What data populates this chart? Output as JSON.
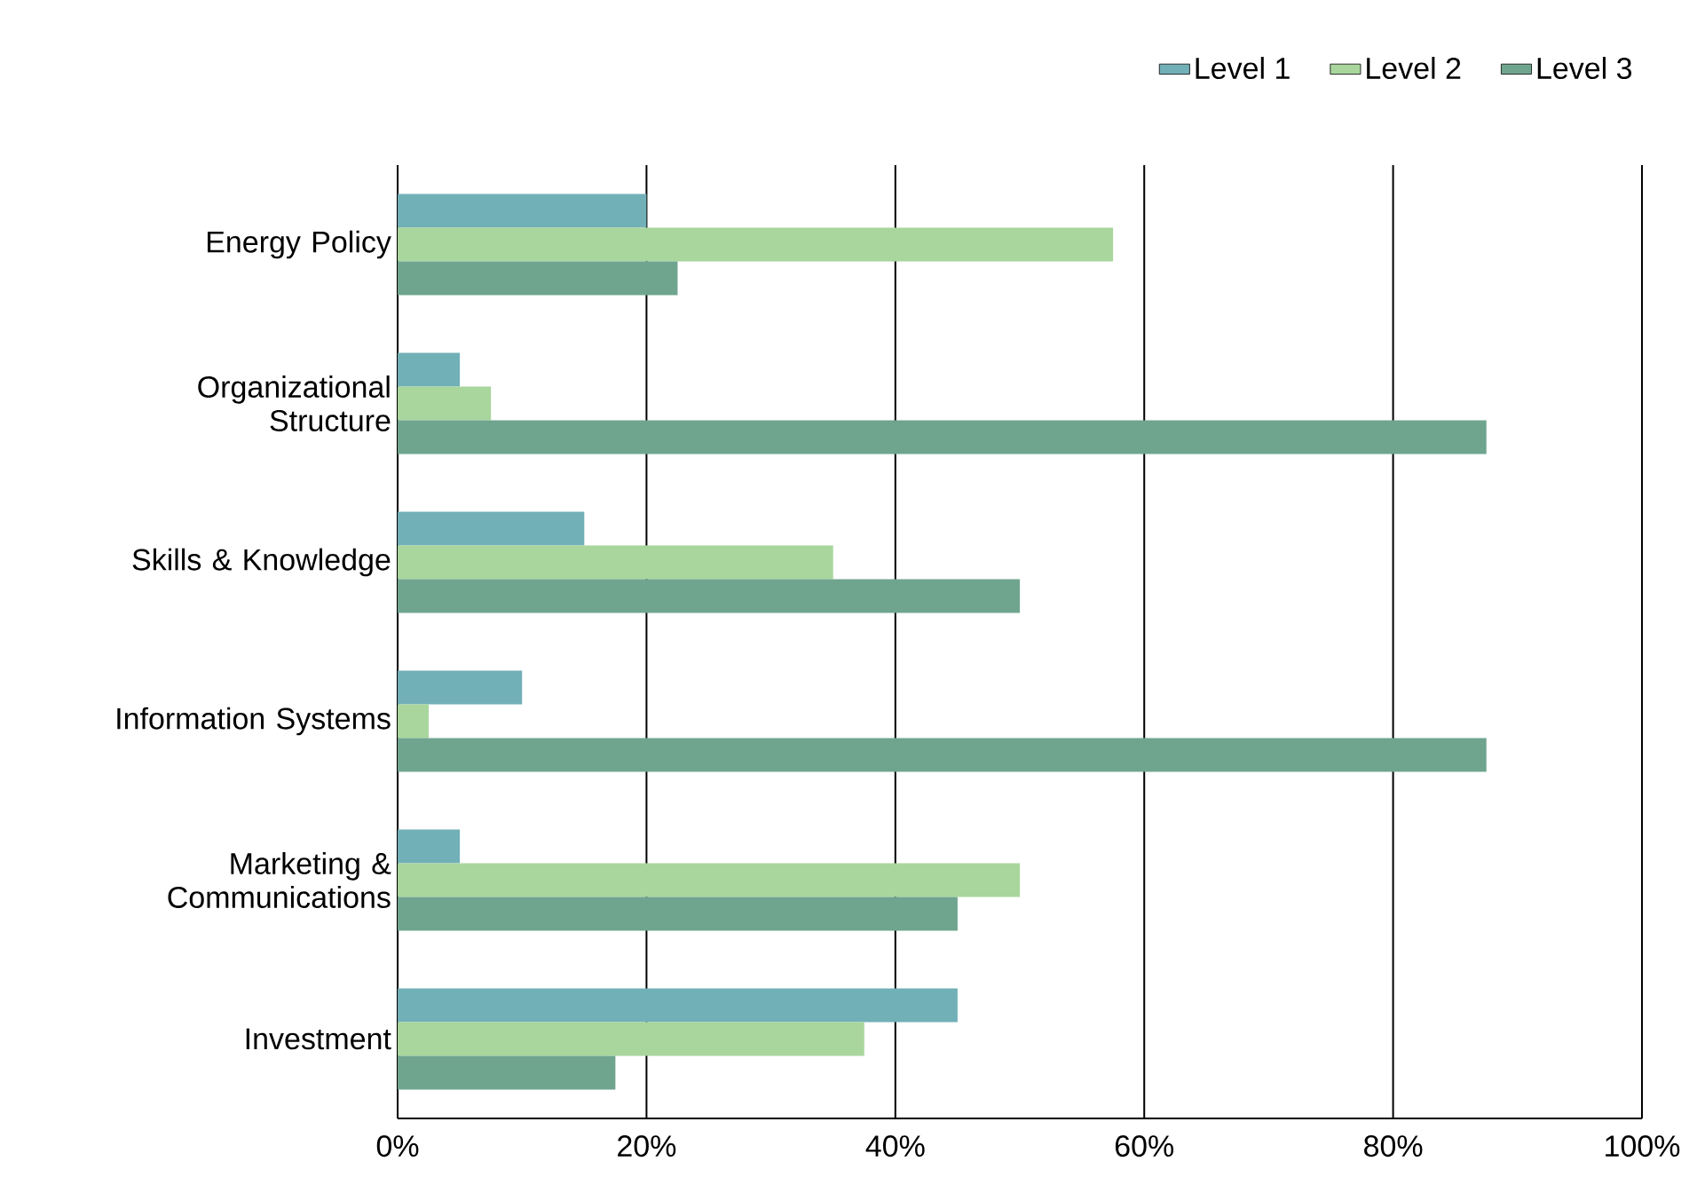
{
  "chart_data": {
    "type": "bar",
    "orientation": "horizontal",
    "categories": [
      "Energy Policy",
      "Organizational Structure",
      "Skills & Knowledge",
      "Information Systems",
      "Marketing & Communications",
      "Investment"
    ],
    "series": [
      {
        "name": "Level 1",
        "color": "#72b0b7",
        "values": [
          20,
          5,
          15,
          10,
          5,
          45
        ]
      },
      {
        "name": "Level 2",
        "color": "#a8d69c",
        "values": [
          57.5,
          7.5,
          35,
          2.5,
          50,
          37.5
        ]
      },
      {
        "name": "Level 3",
        "color": "#6fa58f",
        "values": [
          22.5,
          87.5,
          50,
          87.5,
          45,
          17.5
        ]
      }
    ],
    "xlim": [
      0,
      100
    ],
    "xticks": [
      {
        "value": 0,
        "label": "0%"
      },
      {
        "value": 20,
        "label": "20%"
      },
      {
        "value": 40,
        "label": "40%"
      },
      {
        "value": 60,
        "label": "60%"
      },
      {
        "value": 80,
        "label": "80%"
      },
      {
        "value": 100,
        "label": "100%"
      }
    ],
    "grid": "x",
    "legend": "top right"
  }
}
